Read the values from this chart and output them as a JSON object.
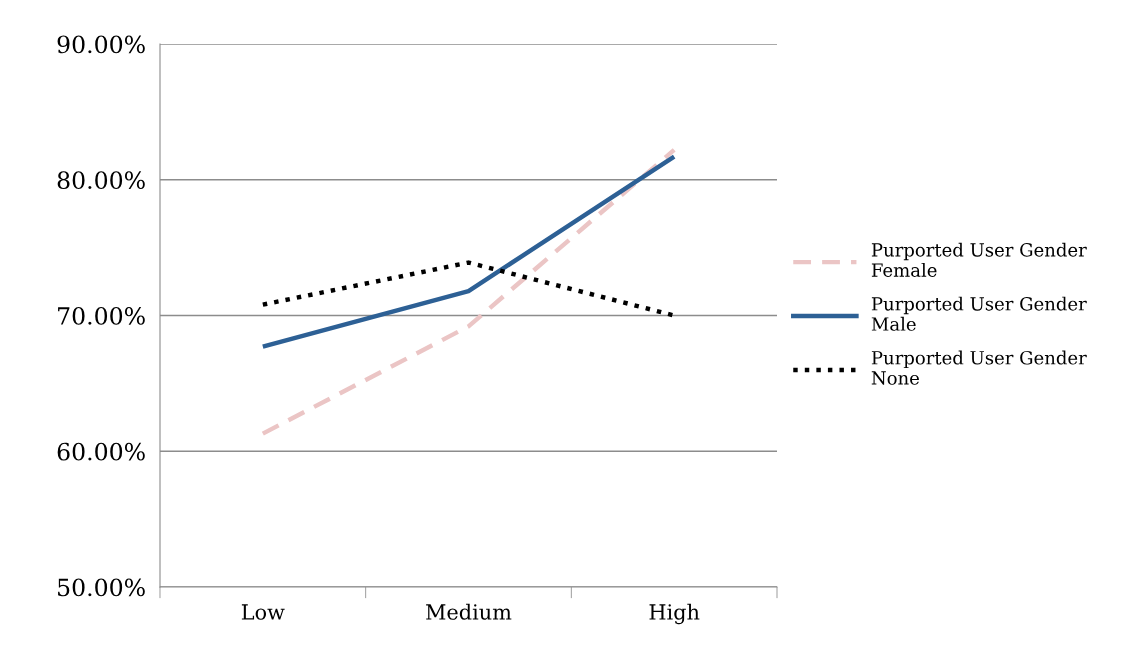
{
  "chart_data": {
    "type": "line",
    "categories": [
      "Low",
      "Medium",
      "High"
    ],
    "series": [
      {
        "name": "Purported User Gender Female",
        "color": "#ebc5c5",
        "line_style": "dashed",
        "values": [
          61.3,
          69.2,
          82.2
        ]
      },
      {
        "name": "Purported User Gender Male",
        "color": "#2d6095",
        "line_style": "solid",
        "values": [
          67.7,
          71.8,
          81.7
        ]
      },
      {
        "name": "Purported User Gender None",
        "color": "#000000",
        "line_style": "dotted",
        "values": [
          70.8,
          73.9,
          70.0
        ]
      }
    ],
    "ylim": [
      50,
      90
    ],
    "yticks": [
      {
        "value": 50,
        "label": "50.00%"
      },
      {
        "value": 60,
        "label": "60.00%"
      },
      {
        "value": 70,
        "label": "70.00%"
      },
      {
        "value": 80,
        "label": "80.00%"
      },
      {
        "value": 90,
        "label": "90.00%"
      }
    ],
    "grid": "y",
    "legend": "right",
    "marker": "none"
  }
}
